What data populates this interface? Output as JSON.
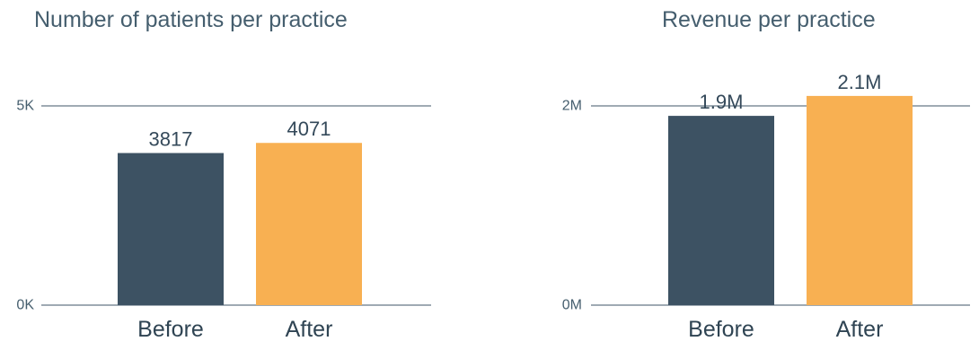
{
  "chart_data": [
    {
      "type": "bar",
      "title": "Number of patients per practice",
      "categories": [
        "Before",
        "After"
      ],
      "values": [
        3817,
        4071
      ],
      "data_labels": [
        "3817",
        "4071"
      ],
      "y_ticks": [
        0,
        5000
      ],
      "y_tick_labels": [
        "0K",
        "5K"
      ],
      "ylim": [
        0,
        5000
      ],
      "xlabel": "",
      "ylabel": "",
      "colors": [
        "#3d5263",
        "#f8b052"
      ],
      "grid": true,
      "legend": false
    },
    {
      "type": "bar",
      "title": "Revenue per practice",
      "categories": [
        "Before",
        "After"
      ],
      "values": [
        1.9,
        2.1
      ],
      "data_labels": [
        "1.9M",
        "2.1M"
      ],
      "y_ticks": [
        0,
        2
      ],
      "y_tick_labels": [
        "0M",
        "2M"
      ],
      "ylim": [
        0,
        2
      ],
      "xlabel": "",
      "ylabel": "",
      "colors": [
        "#3d5263",
        "#f8b052"
      ],
      "grid": true,
      "legend": false
    }
  ]
}
